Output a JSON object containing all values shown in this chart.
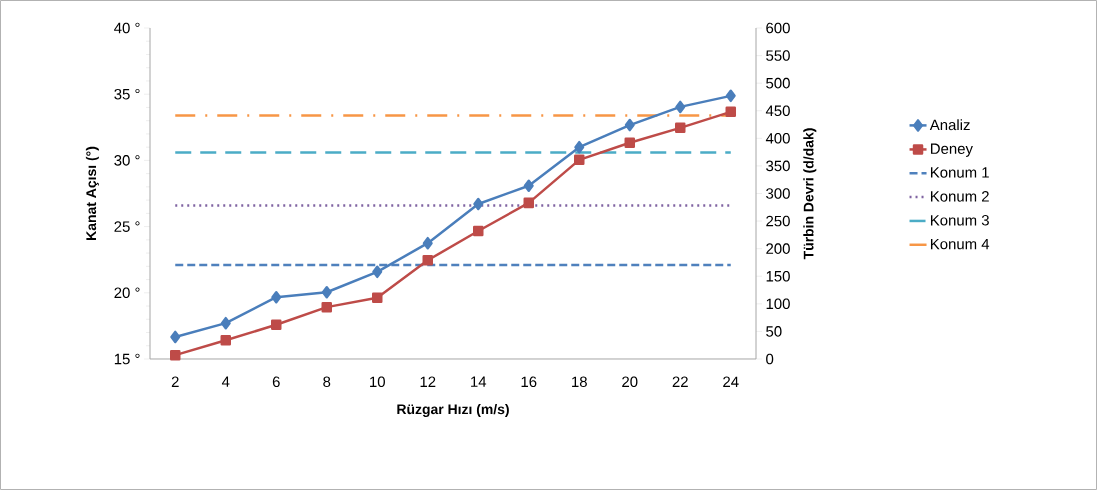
{
  "chart_data": {
    "type": "line",
    "xlabel": "Rüzgar Hızı (m/s)",
    "ylabel": "Kanat Açısı (°)",
    "y2label": "Türbin Devri (d/dak)",
    "categories": [
      "2",
      "4",
      "6",
      "8",
      "10",
      "12",
      "14",
      "16",
      "18",
      "20",
      "22",
      "24"
    ],
    "ylim": [
      15,
      40
    ],
    "yticks": [
      {
        "value": 15,
        "label": "15 °"
      },
      {
        "value": 20,
        "label": "20 °"
      },
      {
        "value": 25,
        "label": "25 °"
      },
      {
        "value": 30,
        "label": "30 °"
      },
      {
        "value": 35,
        "label": "35 °"
      },
      {
        "value": 40,
        "label": "40 °"
      }
    ],
    "y2lim": [
      0,
      600
    ],
    "y2ticks": [
      0,
      50,
      100,
      150,
      200,
      250,
      300,
      350,
      400,
      450,
      500,
      550,
      600
    ],
    "legend": "right",
    "grid": false,
    "series": [
      {
        "name": "Analiz",
        "color": "#4a7ebb",
        "axis": "y2",
        "marker": "diamond",
        "line_style": "solid",
        "values": [
          40,
          65,
          112,
          121,
          158,
          210,
          281,
          314,
          384,
          424,
          457,
          477
        ]
      },
      {
        "name": "Deney",
        "color": "#be4b48",
        "axis": "y2",
        "marker": "square",
        "line_style": "solid",
        "values": [
          7,
          34,
          62,
          94,
          111,
          179,
          232,
          283,
          361,
          392,
          419,
          448
        ]
      },
      {
        "name": "Konum 1",
        "color": "#4f81bd",
        "axis": "y",
        "line_style": "dashed",
        "values": [
          22.1,
          22.1,
          22.1,
          22.1,
          22.1,
          22.1,
          22.1,
          22.1,
          22.1,
          22.1,
          22.1,
          22.1
        ]
      },
      {
        "name": "Konum 2",
        "color": "#8064a2",
        "axis": "y",
        "line_style": "dotted",
        "values": [
          26.6,
          26.6,
          26.6,
          26.6,
          26.6,
          26.6,
          26.6,
          26.6,
          26.6,
          26.6,
          26.6,
          26.6
        ]
      },
      {
        "name": "Konum 3",
        "color": "#4bacc6",
        "axis": "y",
        "line_style": "dashed",
        "values": [
          30.6,
          30.6,
          30.6,
          30.6,
          30.6,
          30.6,
          30.6,
          30.6,
          30.6,
          30.6,
          30.6,
          30.6
        ]
      },
      {
        "name": "Konum 4",
        "color": "#f79646",
        "axis": "y",
        "line_style": "dashed",
        "values": [
          33.4,
          33.4,
          33.4,
          33.4,
          33.4,
          33.4,
          33.4,
          33.4,
          33.4,
          33.4,
          33.4,
          33.4
        ]
      }
    ]
  }
}
